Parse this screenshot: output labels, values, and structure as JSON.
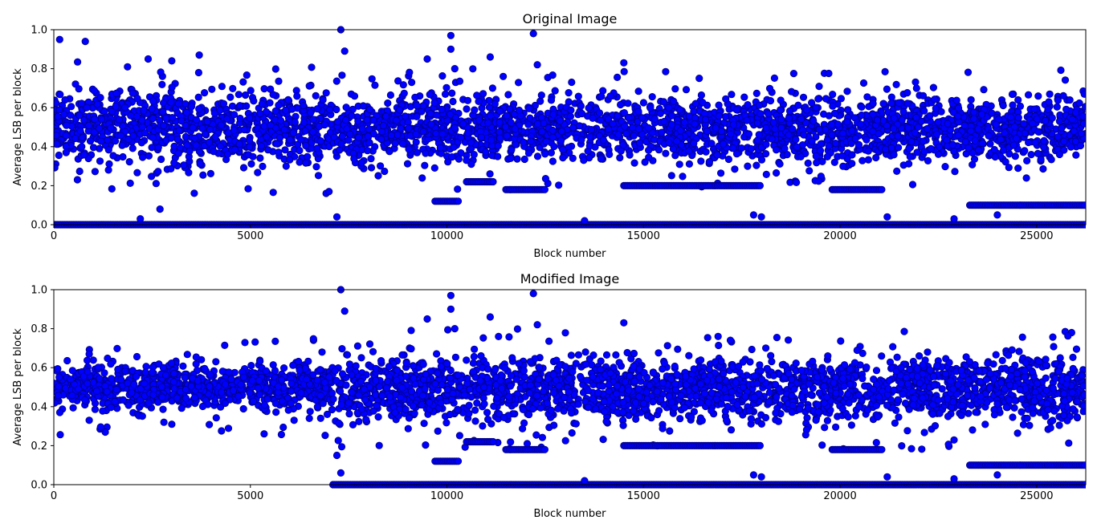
{
  "chart_data": [
    {
      "type": "scatter",
      "title": "Original Image",
      "xlabel": "Block number",
      "ylabel": "Average LSB per block",
      "xlim": [
        0,
        26250
      ],
      "ylim": [
        0.0,
        1.0
      ],
      "xticks": [
        0,
        5000,
        10000,
        15000,
        20000,
        25000
      ],
      "yticks": [
        0.0,
        0.2,
        0.4,
        0.6,
        0.8,
        1.0
      ],
      "tick_labels_x": [
        "0",
        "5000",
        "10000",
        "15000",
        "20000",
        "25000"
      ],
      "tick_labels_y": [
        "0.0",
        "0.2",
        "0.4",
        "0.6",
        "0.8",
        "1.0"
      ],
      "marker_color": "#0000ff",
      "marker_edge_color": "#000080",
      "grid": false,
      "legend": "none",
      "dense_band_segments": [
        {
          "x_start": 0,
          "x_end": 7200,
          "y_low": 0.28,
          "y_high": 0.72
        },
        {
          "x_start": 7200,
          "x_end": 26250,
          "y_low": 0.3,
          "y_high": 0.68
        }
      ],
      "flat_runs": [
        {
          "x_start": 0,
          "x_end": 26250,
          "y": 0.0
        },
        {
          "x_start": 9700,
          "x_end": 10300,
          "y": 0.12
        },
        {
          "x_start": 10500,
          "x_end": 11200,
          "y": 0.22
        },
        {
          "x_start": 11500,
          "x_end": 12500,
          "y": 0.18
        },
        {
          "x_start": 14500,
          "x_end": 18000,
          "y": 0.2
        },
        {
          "x_start": 19800,
          "x_end": 21100,
          "y": 0.18
        },
        {
          "x_start": 23300,
          "x_end": 26250,
          "y": 0.1
        }
      ],
      "outliers": [
        [
          150,
          0.95
        ],
        [
          800,
          0.94
        ],
        [
          2400,
          0.85
        ],
        [
          3000,
          0.84
        ],
        [
          3700,
          0.87
        ],
        [
          7300,
          1.0
        ],
        [
          7400,
          0.89
        ],
        [
          9500,
          0.85
        ],
        [
          10100,
          0.97
        ],
        [
          10100,
          0.9
        ],
        [
          10200,
          0.8
        ],
        [
          11100,
          0.86
        ],
        [
          12200,
          0.98
        ],
        [
          12300,
          0.82
        ],
        [
          14500,
          0.83
        ],
        [
          7000,
          0.17
        ],
        [
          7200,
          0.04
        ],
        [
          2200,
          0.03
        ],
        [
          2700,
          0.08
        ],
        [
          13500,
          0.02
        ],
        [
          17800,
          0.05
        ],
        [
          18000,
          0.04
        ],
        [
          21200,
          0.04
        ],
        [
          22900,
          0.03
        ],
        [
          24000,
          0.05
        ]
      ]
    },
    {
      "type": "scatter",
      "title": "Modified Image",
      "xlabel": "Block number",
      "ylabel": "Average LSB per block",
      "xlim": [
        0,
        26250
      ],
      "ylim": [
        0.0,
        1.0
      ],
      "xticks": [
        0,
        5000,
        10000,
        15000,
        20000,
        25000
      ],
      "yticks": [
        0.0,
        0.2,
        0.4,
        0.6,
        0.8,
        1.0
      ],
      "tick_labels_x": [
        "0",
        "5000",
        "10000",
        "15000",
        "20000",
        "25000"
      ],
      "tick_labels_y": [
        "0.0",
        "0.2",
        "0.4",
        "0.6",
        "0.8",
        "1.0"
      ],
      "marker_color": "#0000ff",
      "marker_edge_color": "#000080",
      "grid": false,
      "legend": "none",
      "dense_band_segments": [
        {
          "x_start": 0,
          "x_end": 7100,
          "y_low": 0.37,
          "y_high": 0.63
        },
        {
          "x_start": 7100,
          "x_end": 26250,
          "y_low": 0.3,
          "y_high": 0.68
        }
      ],
      "flat_runs": [
        {
          "x_start": 7100,
          "x_end": 26250,
          "y": 0.0
        },
        {
          "x_start": 9700,
          "x_end": 10300,
          "y": 0.12
        },
        {
          "x_start": 10500,
          "x_end": 11200,
          "y": 0.22
        },
        {
          "x_start": 11500,
          "x_end": 12500,
          "y": 0.18
        },
        {
          "x_start": 14500,
          "x_end": 18000,
          "y": 0.2
        },
        {
          "x_start": 19800,
          "x_end": 21100,
          "y": 0.18
        },
        {
          "x_start": 23300,
          "x_end": 26250,
          "y": 0.1
        }
      ],
      "outliers": [
        [
          900,
          0.67
        ],
        [
          3000,
          0.31
        ],
        [
          2800,
          0.32
        ],
        [
          900,
          0.33
        ],
        [
          6500,
          0.34
        ],
        [
          7300,
          1.0
        ],
        [
          7400,
          0.89
        ],
        [
          9500,
          0.85
        ],
        [
          10100,
          0.97
        ],
        [
          10100,
          0.9
        ],
        [
          10200,
          0.8
        ],
        [
          11100,
          0.86
        ],
        [
          12200,
          0.98
        ],
        [
          12300,
          0.82
        ],
        [
          14500,
          0.83
        ],
        [
          7200,
          0.15
        ],
        [
          7300,
          0.06
        ],
        [
          13500,
          0.02
        ],
        [
          17800,
          0.05
        ],
        [
          18000,
          0.04
        ],
        [
          21200,
          0.04
        ],
        [
          22900,
          0.03
        ],
        [
          24000,
          0.05
        ]
      ]
    }
  ]
}
